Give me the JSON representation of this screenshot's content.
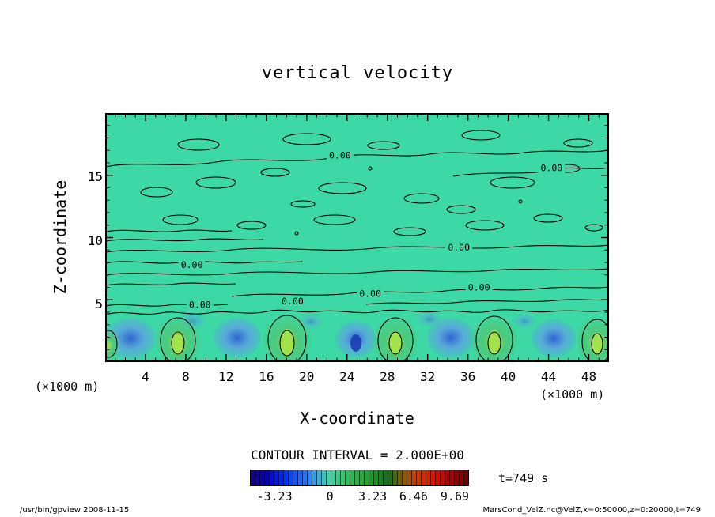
{
  "page": {
    "title": "vertical velocity",
    "contour_interval_label": "CONTOUR INTERVAL = 2.000E+00",
    "time_label": "t=749 s",
    "footer_left": "/usr/bin/gpview  2008-11-15",
    "footer_right": "MarsCond_VelZ.nc@VelZ,x=0:50000,z=0:20000,t=749"
  },
  "chart_data": {
    "type": "contour",
    "title": "vertical velocity",
    "xlabel": "X-coordinate",
    "ylabel": "Z-coordinate",
    "x_unit_label": "(×1000 m)",
    "y_unit_label": "(×1000 m)",
    "xlim": [
      0,
      50
    ],
    "ylim": [
      0,
      20
    ],
    "x_ticks": [
      4,
      8,
      12,
      16,
      20,
      24,
      28,
      32,
      36,
      40,
      44,
      48
    ],
    "y_ticks": [
      15,
      10,
      5
    ],
    "grid": false,
    "contour_interval": 2.0,
    "contour_interval_label": "CONTOUR INTERVAL = 2.000E+00",
    "contour_label": "0.00",
    "zero_contour_labels": [
      {
        "x": 23.3,
        "z": 16.6
      },
      {
        "x": 44.3,
        "z": 15.6
      },
      {
        "x": 35.1,
        "z": 9.2
      },
      {
        "x": 8.6,
        "z": 7.8
      },
      {
        "x": 37.1,
        "z": 6.0
      },
      {
        "x": 26.3,
        "z": 5.5
      },
      {
        "x": 18.6,
        "z": 4.9
      },
      {
        "x": 9.4,
        "z": 4.6
      }
    ],
    "updraft_centers_x": [
      7.2,
      18.1,
      28.8,
      38.6,
      48.8
    ],
    "downdraft_centers_x": [
      2.5,
      13.1,
      24.9,
      34.3,
      44.5
    ],
    "convective_layer_top_z": 4.5,
    "time_label": "t=749 s",
    "colorbar": {
      "tick_values": [
        -3.23,
        0,
        3.23,
        6.46,
        9.69
      ],
      "ticks": [
        {
          "label": "-3.23",
          "pos": 0.112
        },
        {
          "label": "0",
          "pos": 0.365
        },
        {
          "label": "3.23",
          "pos": 0.56
        },
        {
          "label": "6.46",
          "pos": 0.747
        },
        {
          "label": "9.69",
          "pos": 0.935
        }
      ],
      "stops": [
        {
          "pos": 0.0,
          "color": "#1a0080"
        },
        {
          "pos": 0.08,
          "color": "#0000c8"
        },
        {
          "pos": 0.16,
          "color": "#0033ff"
        },
        {
          "pos": 0.26,
          "color": "#2e7bff"
        },
        {
          "pos": 0.33,
          "color": "#35c2c8"
        },
        {
          "pos": 0.365,
          "color": "#3cd8a5"
        },
        {
          "pos": 0.44,
          "color": "#2fc25a"
        },
        {
          "pos": 0.54,
          "color": "#1ea02e"
        },
        {
          "pos": 0.63,
          "color": "#0f7014"
        },
        {
          "pos": 0.7,
          "color": "#8a5a00"
        },
        {
          "pos": 0.76,
          "color": "#c83c00"
        },
        {
          "pos": 0.84,
          "color": "#dc1400"
        },
        {
          "pos": 0.92,
          "color": "#aa0000"
        },
        {
          "pos": 1.0,
          "color": "#640000"
        }
      ]
    },
    "colors": {
      "background": "#3cd8a5",
      "contour": "#000000",
      "updraft_core": "#a2e34c",
      "updraft_glow": "#4ec878",
      "downdraft_core": "#2e5fd2",
      "downdraft_glow": "#5e9fe6",
      "downdraft_deep": "#1d3db0",
      "frame": "#000000"
    }
  }
}
